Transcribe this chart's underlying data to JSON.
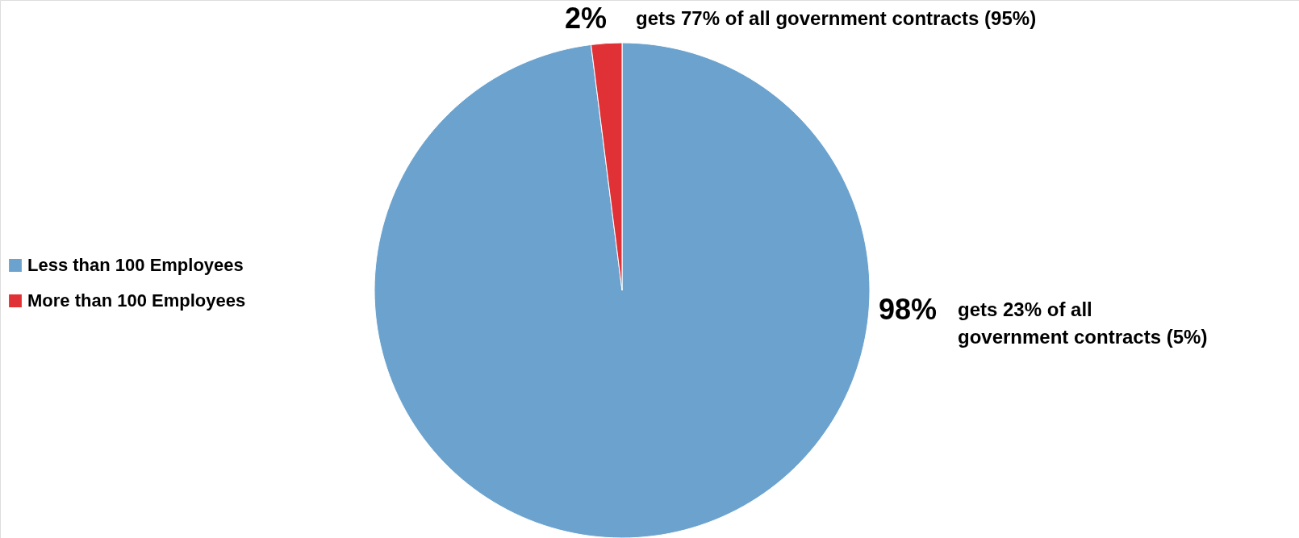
{
  "chart_data": {
    "type": "pie",
    "categories": [
      "Less than 100 Employees",
      "More than 100 Employees"
    ],
    "values": [
      98,
      2
    ],
    "colors": [
      "#6ca3ce",
      "#e03236"
    ],
    "value_labels": [
      "98%",
      "2%"
    ],
    "annotations": [
      "gets 23% of all government contracts (5%)",
      "gets 77% of all government contracts (95%)"
    ],
    "legend": "left"
  }
}
